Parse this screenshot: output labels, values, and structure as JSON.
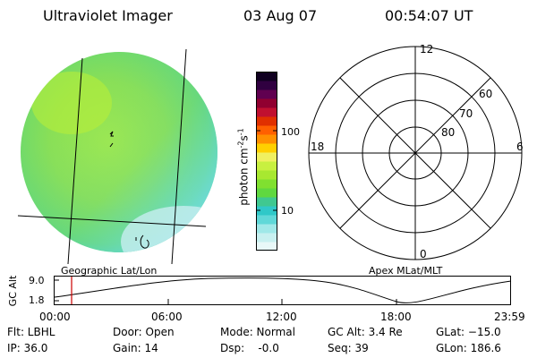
{
  "header": {
    "title": "Ultraviolet Imager",
    "date": "03 Aug 07",
    "time": "00:54:07 UT"
  },
  "colorbar": {
    "unit_label": "photon cm",
    "unit_sup1": "-2",
    "unit_mid": "s",
    "unit_sup2": "-1",
    "ticks": [
      "100",
      "10"
    ],
    "colors": [
      "#e8f8f8",
      "#c8f0f0",
      "#a0e8e8",
      "#60d8d8",
      "#30c8c8",
      "#40c890",
      "#60d840",
      "#80e030",
      "#a8e830",
      "#c8f040",
      "#f0f060",
      "#ffd000",
      "#ff9000",
      "#ff6000",
      "#e03000",
      "#c01030",
      "#900030",
      "#600050",
      "#300040",
      "#100020"
    ]
  },
  "polar_plot": {
    "mlt_labels": {
      "top": "12",
      "left": "18",
      "right": "6",
      "bottom": "0"
    },
    "lat_labels": [
      "60",
      "70",
      "80"
    ]
  },
  "altitude_panel": {
    "y_axis_label": "GC Alt",
    "y_ticks": [
      "9.0",
      "1.8"
    ],
    "left_caption": "Geographic Lat/Lon",
    "right_caption": "Apex MLat/MLT",
    "x_ticks": [
      "00:00",
      "06:00",
      "12:00",
      "18:00",
      "23:59"
    ]
  },
  "status": {
    "filter": "Flt: LBHL",
    "ip": "IP: 36.0",
    "door": "Door: Open",
    "gain": "Gain: 14",
    "mode": "Mode: Normal",
    "dsp": "Dsp:    -0.0",
    "gc_alt": "GC Alt: 3.4 Re",
    "seq": "Seq: 39",
    "glat": "GLat: −15.0",
    "glon": "GLon: 186.6"
  },
  "colors": {
    "marker": "#cc0000",
    "disk_primary": "#8ee04a",
    "disk_secondary": "#60d8c8"
  }
}
